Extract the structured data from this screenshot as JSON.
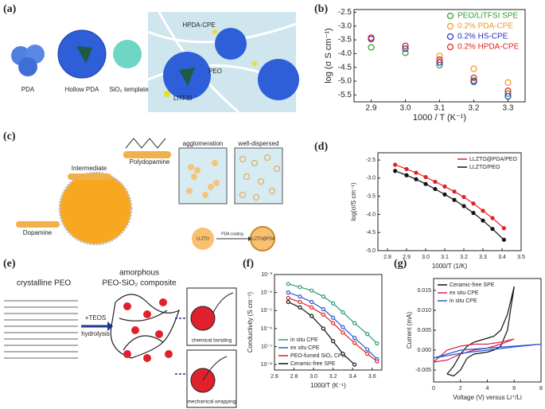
{
  "panel_labels": [
    "(a)",
    "(b)",
    "(c)",
    "(d)",
    "(e)",
    "(f)",
    "(g)"
  ],
  "illustrations": {
    "a": {
      "labels": [
        "PDA",
        "Hollow PDA",
        "SiO₂ template",
        "HPDA-CPE",
        "PEO",
        "LiTFSI"
      ]
    },
    "c": {
      "labels": [
        "Intermediate",
        "Polydopamine",
        "Dopamine",
        "agglomeration",
        "well-dispersed",
        "LLZTO",
        "PDA coating",
        "LLZTO@PDA"
      ]
    },
    "e": {
      "labels": [
        "crystalline PEO",
        "amorphous",
        "PEO-SiO₂ composite",
        "+TEOS",
        "hydrolysis",
        "chemical bonding",
        "mechanical wrapping"
      ]
    }
  },
  "chart_data": [
    {
      "type": "scatter",
      "x_label": "1000 / T (K⁻¹)",
      "y_label": "log (σ S cm⁻¹)",
      "x": [
        2.9,
        3.0,
        3.1,
        3.2,
        3.3
      ],
      "xlim": [
        2.85,
        3.35
      ],
      "xticks": [
        2.9,
        {
          "value": 3,
          "label": "3.0"
        },
        3.1,
        3.2,
        3.3
      ],
      "ylim": [
        -5.75,
        -2.4
      ],
      "yticks": [
        -2.5,
        {
          "value": -3,
          "label": "-3.0"
        },
        -3.5,
        {
          "value": -4,
          "label": "-4.0"
        },
        -4.5,
        {
          "value": -5,
          "label": "-5.0"
        },
        -5.5
      ],
      "legend": "upper right",
      "series": [
        {
          "name": "PEO/LiTFSI SPE",
          "color": "#2e9e2e",
          "values": [
            -3.77,
            -3.97,
            -4.42,
            -4.98,
            -5.45
          ]
        },
        {
          "name": "0.2% PDA-CPE",
          "color": "#f0961e",
          "values": [
            -3.42,
            -3.72,
            -4.08,
            -4.55,
            -5.05
          ]
        },
        {
          "name": "0.2% HS-CPE",
          "color": "#2a2ad0",
          "values": [
            -3.47,
            -3.82,
            -4.32,
            -5.02,
            -5.55
          ]
        },
        {
          "name": "0.2% HPDA-CPE",
          "color": "#e02020",
          "values": [
            -3.42,
            -3.72,
            -4.22,
            -4.88,
            -5.35
          ]
        }
      ]
    },
    {
      "type": "line",
      "markers": true,
      "x_label": "1000/T (1/K)",
      "y_label": "log(σ/S cm⁻¹)",
      "x": [
        2.84,
        2.9,
        2.95,
        3.0,
        3.05,
        3.1,
        3.15,
        3.2,
        3.25,
        3.3,
        3.35,
        3.41
      ],
      "xlim": [
        2.75,
        3.5
      ],
      "xticks": [
        2.8,
        2.9,
        {
          "value": 3,
          "label": "3.0"
        },
        3.1,
        3.2,
        3.3,
        3.4,
        3.5
      ],
      "ylim": [
        -5,
        -2.3
      ],
      "yticks": [
        -2.5,
        {
          "value": -3,
          "label": "-3.0"
        },
        -3.5,
        {
          "value": -4,
          "label": "-4.0"
        },
        -4.5,
        {
          "value": -5,
          "label": "-5.0"
        }
      ],
      "legend": "upper right",
      "series": [
        {
          "name": "LLZTO@PDA/PEO",
          "color": "#e02020",
          "values": [
            -2.63,
            -2.75,
            -2.85,
            -2.97,
            -3.1,
            -3.23,
            -3.37,
            -3.52,
            -3.7,
            -3.9,
            -4.1,
            -4.38
          ]
        },
        {
          "name": "LLZTO/PEO",
          "color": "#111111",
          "values": [
            -2.8,
            -2.92,
            -3.03,
            -3.16,
            -3.3,
            -3.45,
            -3.6,
            -3.77,
            -3.96,
            -4.17,
            -4.4,
            -4.7
          ]
        }
      ]
    },
    {
      "type": "line",
      "markers": true,
      "y_scale": "log",
      "x_label": "1000/T (K⁻¹)",
      "y_label": "Conductivity (S cm⁻¹)",
      "x": [
        2.74,
        2.86,
        2.98,
        3.1,
        3.2,
        3.3,
        3.42,
        3.55,
        3.65
      ],
      "xlim": [
        2.6,
        3.7
      ],
      "xticks": [
        2.6,
        2.8,
        {
          "value": 3,
          "label": "3.0"
        },
        3.2,
        3.4,
        3.6
      ],
      "ylim": [
        5e-09,
        0.001
      ],
      "yticks": [
        {
          "value": 1e-08,
          "label": "10⁻⁸"
        },
        {
          "value": 1e-07,
          "label": "10⁻⁷"
        },
        {
          "value": 1e-06,
          "label": "10⁻⁶"
        },
        {
          "value": 1e-05,
          "label": "10⁻⁵"
        },
        {
          "value": 0.0001,
          "label": "10⁻⁴"
        },
        {
          "value": 0.001,
          "label": "10⁻³"
        }
      ],
      "legend": "lower left",
      "series": [
        {
          "name": "in situ CPE",
          "color": "#2a9a7a",
          "values": [
            0.0003,
            0.0002,
            0.00013,
            6e-05,
            2.5e-05,
            8e-06,
            2e-06,
            5e-07,
            1.5e-07
          ]
        },
        {
          "name": "ex situ CPE",
          "color": "#2a5ad0",
          "values": [
            0.0001,
            6e-05,
            3e-05,
            1.2e-05,
            4e-06,
            1.2e-06,
            3e-07,
            7e-08,
            2e-08
          ]
        },
        {
          "name": "PEO-fumed SiO₂ CPE",
          "color": "#e02020",
          "values": [
            5e-05,
            3e-05,
            1.5e-05,
            6e-06,
            2e-06,
            6e-07,
            1.6e-07,
            4e-08,
            1.5e-08
          ]
        },
        {
          "name": "Ceramic-free SPE",
          "color": "#111111",
          "values": [
            3e-05,
            1.5e-05,
            5e-06,
            1e-06,
            2e-07,
            4e-08,
            1e-08,
            null,
            null
          ]
        }
      ]
    },
    {
      "type": "line",
      "x_label": "Voltage (V) versus Li⁺/Li",
      "y_label": "Current (mA)",
      "xlim": [
        0,
        8
      ],
      "xticks": [
        0,
        2,
        4,
        6,
        8
      ],
      "ylim": [
        -0.008,
        0.018
      ],
      "yticks": [
        -0.005,
        {
          "value": 0,
          "label": "0.000"
        },
        {
          "value": 0.005,
          "label": "0.005"
        },
        {
          "value": 0.01,
          "label": "0.010"
        },
        {
          "value": 0.015,
          "label": "0.015"
        }
      ],
      "legend": "upper left",
      "series": [
        {
          "name": "Ceramic-free SPE",
          "color": "#111111",
          "x": [
            1,
            1.5,
            2,
            2.5,
            3,
            3.5,
            4,
            4.5,
            5,
            5.5,
            6,
            5.5,
            5,
            4.5,
            4,
            3,
            2.5,
            2,
            1.5,
            1
          ],
          "values": [
            -0.006,
            -0.004,
            -0.001,
            0.001,
            0.002,
            0.0025,
            0.003,
            0.0035,
            0.005,
            0.009,
            0.016,
            0.005,
            0.001,
            0,
            -0.0005,
            -0.001,
            -0.002,
            -0.005,
            -0.0065,
            -0.006
          ]
        },
        {
          "name": "ex situ CPE",
          "color": "#e02050",
          "x": [
            0,
            1,
            2,
            3,
            4,
            5,
            6,
            5,
            4,
            3,
            2,
            1,
            0
          ],
          "values": [
            -0.003,
            0,
            0.001,
            0.0015,
            0.0015,
            0.002,
            0.0028,
            0.0015,
            0.0005,
            0,
            -0.001,
            -0.0025,
            -0.003
          ]
        },
        {
          "name": "in situ CPE",
          "color": "#2a5ad0",
          "x": [
            0,
            2,
            4,
            6,
            8,
            6,
            4,
            2,
            0
          ],
          "values": [
            -0.002,
            0,
            0.0005,
            0.001,
            0.0015,
            0.0008,
            0,
            -0.0008,
            -0.002
          ]
        }
      ]
    }
  ]
}
